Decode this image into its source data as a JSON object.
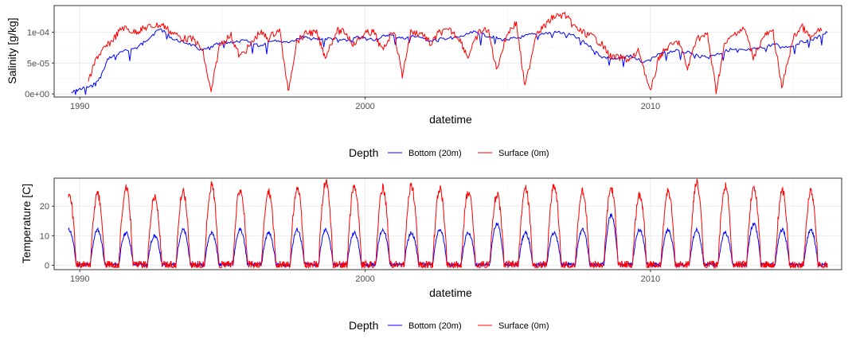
{
  "colors": {
    "bottom": "#0000FF",
    "surface": "#FF0000",
    "grid": "#EBEBEB",
    "border": "#333333"
  },
  "chart_data": [
    {
      "type": "line",
      "xlabel": "datetime",
      "ylabel": "Salinity [g/kg]",
      "x_ticks": [
        "1990",
        "2000",
        "2010"
      ],
      "y_ticks": [
        "0e+00",
        "5e-05",
        "1e-04"
      ],
      "xlim": [
        1989.1,
        2016.7
      ],
      "ylim": [
        -5e-06,
        0.000143
      ],
      "grid": true,
      "legend": {
        "title": "Depth",
        "position": "bottom",
        "entries": [
          "Bottom (20m)",
          "Surface (0m)"
        ]
      },
      "series": [
        {
          "name": "Bottom (20m)",
          "color": "#0000FF",
          "x": [
            1989.7,
            1990.0,
            1990.4,
            1990.7,
            1991.0,
            1991.5,
            1992.0,
            1992.4,
            1992.8,
            1993.3,
            1993.8,
            1994.3,
            1994.8,
            1995.3,
            1995.8,
            1996.3,
            1996.8,
            1997.3,
            1997.8,
            1998.3,
            1998.8,
            1999.3,
            1999.8,
            2000.3,
            2000.8,
            2001.3,
            2001.8,
            2002.3,
            2002.8,
            2003.3,
            2003.8,
            2004.3,
            2004.8,
            2005.3,
            2005.8,
            2006.3,
            2006.8,
            2007.3,
            2007.8,
            2008.3,
            2008.8,
            2009.3,
            2009.8,
            2010.3,
            2010.8,
            2011.3,
            2011.8,
            2012.3,
            2012.8,
            2013.3,
            2013.8,
            2014.3,
            2014.8,
            2015.3,
            2015.8,
            2016.2
          ],
          "values": [
            2e-06,
            8e-06,
            1.2e-05,
            2.5e-05,
            5.8e-05,
            6.8e-05,
            7.5e-05,
            9e-05,
            0.000106,
            8.8e-05,
            8.2e-05,
            7e-05,
            8e-05,
            8.4e-05,
            8.6e-05,
            7.8e-05,
            8.8e-05,
            8.4e-05,
            9.2e-05,
            8.8e-05,
            9e-05,
            8.6e-05,
            9.2e-05,
            8.8e-05,
            9.6e-05,
            9e-05,
            9.4e-05,
            8.6e-05,
            9e-05,
            9.2e-05,
            0.0001,
            9.4e-05,
            8.8e-05,
            9e-05,
            9.6e-05,
            9.8e-05,
            0.0001,
            9.4e-05,
            8e-05,
            6e-05,
            5.6e-05,
            6.2e-05,
            5e-05,
            6.4e-05,
            7e-05,
            6.8e-05,
            6e-05,
            6.4e-05,
            7.2e-05,
            7e-05,
            7.4e-05,
            8e-05,
            7.6e-05,
            8.4e-05,
            9e-05,
            0.0001
          ]
        },
        {
          "name": "Surface (0m)",
          "color": "#FF0000",
          "x": [
            1990.3,
            1990.6,
            1990.9,
            1991.2,
            1991.5,
            1991.9,
            1992.2,
            1992.5,
            1992.9,
            1993.2,
            1993.6,
            1994.0,
            1994.3,
            1994.6,
            1994.9,
            1995.3,
            1995.6,
            1996.0,
            1996.3,
            1996.6,
            1997.0,
            1997.3,
            1997.6,
            1998.0,
            1998.3,
            1998.6,
            1999.0,
            1999.3,
            1999.6,
            2000.0,
            2000.3,
            2000.6,
            2001.0,
            2001.3,
            2001.6,
            2002.0,
            2002.3,
            2002.6,
            2003.0,
            2003.3,
            2003.6,
            2004.0,
            2004.3,
            2004.6,
            2005.0,
            2005.3,
            2005.6,
            2006.0,
            2006.3,
            2006.6,
            2007.0,
            2007.3,
            2007.6,
            2008.0,
            2008.3,
            2008.6,
            2009.0,
            2009.3,
            2009.6,
            2010.0,
            2010.3,
            2010.6,
            2011.0,
            2011.3,
            2011.6,
            2012.0,
            2012.3,
            2012.6,
            2013.0,
            2013.3,
            2013.6,
            2014.0,
            2014.3,
            2014.6,
            2015.0,
            2015.3,
            2015.6,
            2016.0
          ],
          "values": [
            2e-05,
            6e-05,
            7.5e-05,
            9e-05,
            0.000108,
            0.0001,
            0.000105,
            0.00011,
            0.000112,
            0.0001,
            9e-05,
            8.8e-05,
            7e-05,
            2e-06,
            8e-05,
            9.5e-05,
            6e-05,
            8e-05,
            0.0001,
            9e-05,
            0.000105,
            3e-06,
            8.5e-05,
            0.0001,
            9.8e-05,
            6e-05,
            0.000102,
            0.0001,
            8e-05,
            9.8e-05,
            0.0001,
            7e-05,
            0.000105,
            3e-05,
            0.0001,
            9.8e-05,
            8e-05,
            0.0001,
            0.000102,
            9e-05,
            6e-05,
            0.0001,
            0.000105,
            4e-05,
            0.0001,
            0.000115,
            1e-05,
            0.0001,
            0.00011,
            0.000125,
            0.000128,
            0.00011,
            0.0001,
            9.2e-05,
            8e-05,
            6e-05,
            5.8e-05,
            5.5e-05,
            7e-05,
            2e-06,
            6e-05,
            7.5e-05,
            8.5e-05,
            4e-05,
            9e-05,
            9.5e-05,
            5e-06,
            8e-05,
            0.0001,
            0.000105,
            6e-05,
            9.5e-05,
            0.0001,
            1e-05,
            9e-05,
            0.00011,
            9e-05,
            0.000105
          ]
        }
      ]
    },
    {
      "type": "line",
      "xlabel": "datetime",
      "ylabel": "Temperature [C]",
      "x_ticks": [
        "1990",
        "2000",
        "2010"
      ],
      "y_ticks": [
        "0",
        "10",
        "20"
      ],
      "xlim": [
        1989.1,
        2016.7
      ],
      "ylim": [
        -1.5,
        29.5
      ],
      "grid": true,
      "legend": {
        "title": "Depth",
        "position": "bottom",
        "entries": [
          "Bottom (20m)",
          "Surface (0m)"
        ]
      },
      "seasonal": {
        "start_year": 1990,
        "end_year": 2016,
        "surface_peaks": [
          24,
          26,
          23,
          25,
          27,
          26,
          25,
          26,
          28,
          27,
          26,
          27,
          26,
          25,
          24,
          26,
          27,
          25,
          26,
          24,
          25,
          28,
          27,
          26,
          25,
          25
        ],
        "bottom_peaks": [
          12,
          11,
          10,
          12,
          11,
          12,
          11,
          12,
          12,
          11,
          12,
          11,
          12,
          11,
          14,
          11,
          11,
          12,
          17,
          12,
          12,
          12,
          11,
          14,
          12,
          12
        ]
      },
      "series": [
        {
          "name": "Bottom (20m)",
          "color": "#0000FF"
        },
        {
          "name": "Surface (0m)",
          "color": "#FF0000"
        }
      ]
    }
  ]
}
